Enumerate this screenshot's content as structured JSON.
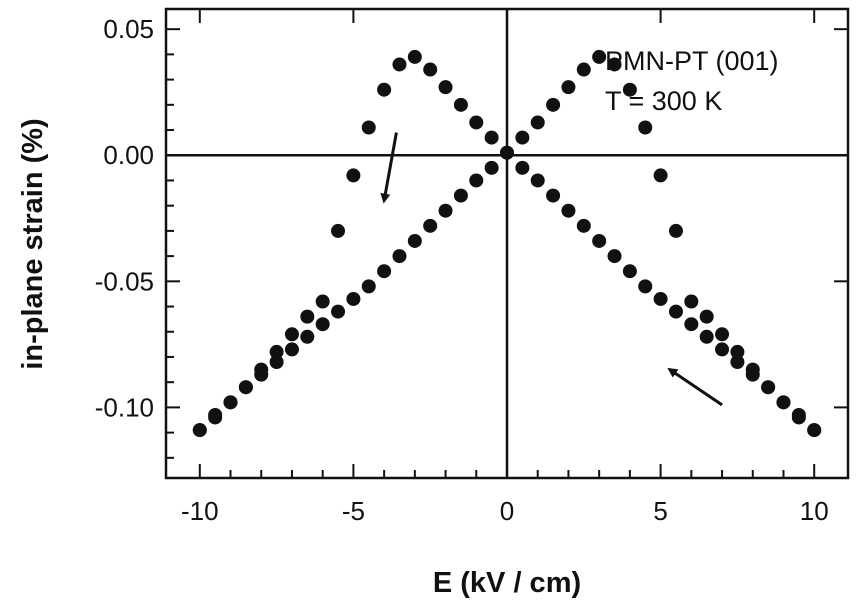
{
  "chart_data": {
    "type": "scatter",
    "title": "",
    "xlabel": "E (kV / cm)",
    "ylabel": "in-plane strain (%)",
    "xlim": [
      -11.1,
      11.1
    ],
    "ylim": [
      -0.128,
      0.058
    ],
    "x_ticks": [
      -10,
      -5,
      0,
      5,
      10
    ],
    "x_tick_labels": [
      "-10",
      "-5",
      "0",
      "5",
      "10"
    ],
    "y_ticks": [
      0.05,
      0.0,
      -0.05,
      -0.1
    ],
    "y_tick_labels": [
      "0.05",
      "0.00",
      "-0.05",
      "-0.10"
    ],
    "grid": false,
    "annotations": [
      "PMN-PT (001)",
      "T = 300 K"
    ],
    "series": [
      {
        "color": "#111111",
        "x": [
          -10.0,
          -9.5,
          -9.0,
          -8.5,
          -8.0,
          -7.5,
          -7.0,
          -6.5,
          -6.0,
          -5.5,
          -5.0,
          -4.5,
          -4.0,
          -3.5,
          -3.0,
          -2.5,
          -2.0,
          -1.5,
          -1.0,
          -0.5,
          0.0,
          0.5,
          1.0,
          1.5,
          2.0,
          2.5,
          3.0,
          3.5,
          4.0,
          4.5,
          5.0,
          5.5,
          6.0,
          6.5,
          7.0,
          7.5,
          8.0,
          8.5,
          9.0,
          9.5,
          10.0
        ],
        "y": [
          -0.109,
          -0.103,
          -0.098,
          -0.092,
          -0.087,
          -0.082,
          -0.077,
          -0.072,
          -0.067,
          -0.062,
          -0.057,
          -0.052,
          -0.046,
          -0.04,
          -0.034,
          -0.028,
          -0.022,
          -0.016,
          -0.01,
          -0.005,
          0.001,
          0.007,
          0.013,
          0.02,
          0.027,
          0.034,
          0.039,
          0.036,
          0.026,
          0.011,
          -0.008,
          -0.03,
          -0.058,
          -0.064,
          -0.071,
          -0.078,
          -0.085,
          -0.092,
          -0.098,
          -0.104,
          -0.109
        ]
      },
      {
        "color": "#111111",
        "x": [
          10.0,
          9.5,
          9.0,
          8.5,
          8.0,
          7.5,
          7.0,
          6.5,
          6.0,
          5.5,
          5.0,
          4.5,
          4.0,
          3.5,
          3.0,
          2.5,
          2.0,
          1.5,
          1.0,
          0.5,
          0.0,
          -0.5,
          -1.0,
          -1.5,
          -2.0,
          -2.5,
          -3.0,
          -3.5,
          -4.0,
          -4.5,
          -5.0,
          -5.5,
          -6.0,
          -6.5,
          -7.0,
          -7.5,
          -8.0,
          -8.5,
          -9.0,
          -9.5,
          -10.0
        ],
        "y": [
          -0.109,
          -0.103,
          -0.098,
          -0.092,
          -0.087,
          -0.082,
          -0.077,
          -0.072,
          -0.067,
          -0.062,
          -0.057,
          -0.052,
          -0.046,
          -0.04,
          -0.034,
          -0.028,
          -0.022,
          -0.016,
          -0.01,
          -0.005,
          0.001,
          0.007,
          0.013,
          0.02,
          0.027,
          0.034,
          0.039,
          0.036,
          0.026,
          0.011,
          -0.008,
          -0.03,
          -0.058,
          -0.064,
          -0.071,
          -0.078,
          -0.085,
          -0.092,
          -0.098,
          -0.104,
          -0.109
        ]
      }
    ],
    "arrows": [
      {
        "from": [
          -3.6,
          0.009
        ],
        "to": [
          -4.0,
          -0.018
        ]
      },
      {
        "from": [
          7.0,
          -0.099
        ],
        "to": [
          5.3,
          -0.085
        ]
      }
    ]
  }
}
